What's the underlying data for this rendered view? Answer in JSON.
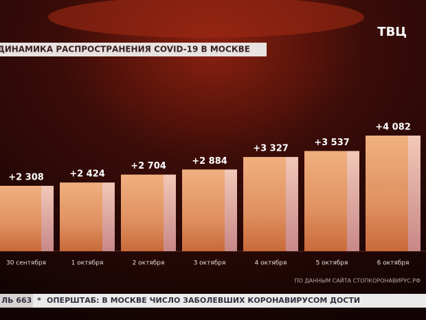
{
  "chart_data": {
    "type": "bar",
    "title": "ДИНАМИКА РАСПРОСТРАНЕНИЯ COVID-19 В МОСКВЕ",
    "categories": [
      "30 сентября",
      "1 октября",
      "2 октября",
      "3 октября",
      "4 октября",
      "5 октября",
      "6 октября"
    ],
    "values": [
      2308,
      2424,
      2704,
      2884,
      3327,
      3537,
      4082
    ],
    "value_labels": [
      "+2 308",
      "+2 424",
      "+2 704",
      "+2 884",
      "+3 327",
      "+3 537",
      "+4 082"
    ],
    "color": "#e8a070",
    "source": "ПО ДАННЫМ САЙТА СТОПКОРОНАВИРУС.РФ"
  },
  "logo": "ТВЦ",
  "ticker": {
    "counter": "ЛЬ 663",
    "text": "ОПЕРШТАБ: В МОСКВЕ ЧИСЛО ЗАБОЛЕВШИХ КОРОНАВИРУСОМ ДОСТИ"
  }
}
